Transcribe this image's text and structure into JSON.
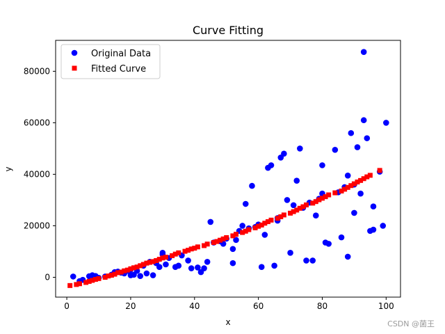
{
  "chart_data": {
    "type": "scatter",
    "title": "Curve Fitting",
    "xlabel": "x",
    "ylabel": "y",
    "xlim": [
      -3.5,
      104.5
    ],
    "ylim": [
      -7700,
      92000
    ],
    "xticks": [
      0,
      20,
      40,
      60,
      80,
      100
    ],
    "yticks": [
      0,
      20000,
      40000,
      60000,
      80000
    ],
    "ytick_labels": [
      "0",
      "20000",
      "40000",
      "60000",
      "80000"
    ],
    "legend_position": "top-left",
    "series": [
      {
        "name": "Original Data",
        "marker": "circle",
        "color": "#0000ff",
        "x": [
          2,
          4,
          5,
          7,
          8,
          9,
          10,
          12,
          14,
          15,
          16,
          17,
          18,
          19,
          20,
          20,
          21,
          22,
          23,
          24,
          25,
          26,
          27,
          28,
          29,
          30,
          30,
          31,
          32,
          34,
          35,
          36,
          38,
          39,
          41,
          42,
          43,
          44,
          45,
          46,
          48,
          49,
          50,
          52,
          52,
          53,
          54,
          55,
          56,
          57,
          58,
          59,
          60,
          61,
          62,
          63,
          64,
          65,
          66,
          66,
          67,
          68,
          69,
          70,
          71,
          72,
          73,
          74,
          75,
          76,
          77,
          78,
          79,
          80,
          80,
          81,
          82,
          84,
          85,
          86,
          87,
          88,
          88,
          89,
          90,
          90,
          91,
          92,
          93,
          93,
          94,
          95,
          96,
          96,
          98,
          99,
          100
        ],
        "y": [
          300,
          -1500,
          -1000,
          400,
          800,
          500,
          -200,
          300,
          1000,
          2000,
          2200,
          1800,
          1500,
          2500,
          3000,
          800,
          1000,
          2500,
          500,
          4500,
          1500,
          6000,
          800,
          5500,
          4000,
          8800,
          9500,
          5000,
          7500,
          4000,
          4500,
          8500,
          6500,
          3500,
          3800,
          2000,
          3500,
          6000,
          21500,
          13500,
          14000,
          13000,
          15000,
          11000,
          5500,
          14500,
          18000,
          20000,
          28500,
          19000,
          35500,
          19500,
          20500,
          4000,
          16500,
          42500,
          43500,
          4500,
          22000,
          23000,
          46500,
          48000,
          30000,
          9500,
          28000,
          37500,
          50000,
          27000,
          6500,
          29000,
          6500,
          24000,
          30500,
          43500,
          32500,
          13500,
          13000,
          49500,
          33000,
          15500,
          35000,
          8000,
          39500,
          56000,
          36000,
          25000,
          50500,
          32500,
          87500,
          61000,
          54000,
          18000,
          27500,
          18500,
          41000,
          20000,
          60000
        ]
      },
      {
        "name": "Fitted Curve",
        "marker": "square",
        "color": "#ff0000",
        "x": [
          1,
          3,
          4,
          6,
          7,
          8,
          9,
          10,
          12,
          13,
          14,
          15,
          16,
          17,
          18,
          19,
          20,
          21,
          22,
          23,
          24,
          25,
          26,
          27,
          28,
          29,
          30,
          31,
          33,
          34,
          35,
          37,
          38,
          39,
          40,
          41,
          43,
          44,
          46,
          47,
          48,
          49,
          50,
          52,
          53,
          55,
          56,
          57,
          59,
          60,
          61,
          62,
          63,
          64,
          66,
          67,
          68,
          70,
          71,
          72,
          73,
          74,
          75,
          77,
          78,
          79,
          80,
          81,
          82,
          84,
          86,
          87,
          88,
          89,
          90,
          91,
          92,
          93,
          94,
          95,
          98
        ],
        "y": [
          -3200,
          -2800,
          -2500,
          -2000,
          -1600,
          -1200,
          -800,
          -500,
          0,
          500,
          800,
          1200,
          1800,
          2000,
          2500,
          2800,
          3300,
          3700,
          4000,
          4500,
          5000,
          5500,
          5800,
          6100,
          6500,
          7000,
          7500,
          7800,
          8400,
          9000,
          9500,
          10100,
          10500,
          11000,
          11300,
          11800,
          12300,
          12900,
          13500,
          13900,
          14400,
          14900,
          15400,
          16100,
          16700,
          17400,
          17900,
          18500,
          19200,
          19800,
          20300,
          21000,
          21600,
          22200,
          22900,
          23500,
          24200,
          24900,
          25500,
          26100,
          26800,
          27400,
          28100,
          28800,
          29400,
          30100,
          30700,
          31300,
          32000,
          32800,
          33500,
          34200,
          34900,
          35600,
          36300,
          37000,
          37600,
          38300,
          39000,
          39600,
          41500
        ]
      }
    ]
  },
  "watermark": "CSDN @菌王"
}
